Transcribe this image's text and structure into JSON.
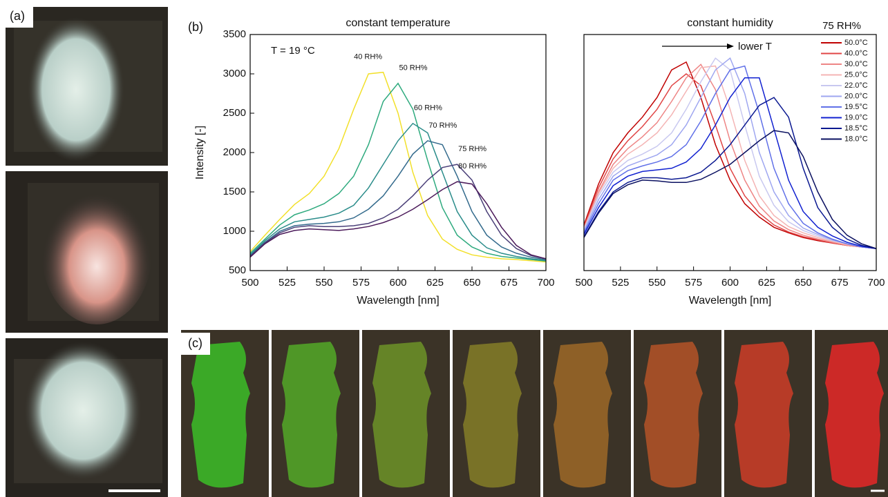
{
  "panel_labels": [
    "(a)",
    "(b)",
    "(c)"
  ],
  "chart_data": [
    {
      "type": "line",
      "title": "constant temperature",
      "annotation": "T = 19 °C",
      "xlabel": "Wavelength [nm]",
      "ylabel": "Intensity [-]",
      "xlim": [
        500,
        700
      ],
      "xticks": [
        500,
        525,
        550,
        575,
        600,
        625,
        650,
        675,
        700
      ],
      "ylim": [
        500,
        3500
      ],
      "yticks": [
        500,
        1000,
        1500,
        2000,
        2500,
        3000,
        3500
      ],
      "x": [
        500,
        510,
        520,
        530,
        540,
        550,
        560,
        570,
        580,
        590,
        600,
        610,
        620,
        630,
        640,
        650,
        660,
        670,
        680,
        690,
        700
      ],
      "series": [
        {
          "name": "40 RH%",
          "color": "#f2e02a",
          "values": [
            740,
            950,
            1150,
            1340,
            1480,
            1700,
            2050,
            2550,
            3000,
            3020,
            2500,
            1750,
            1200,
            900,
            770,
            700,
            670,
            650,
            640,
            625,
            610
          ]
        },
        {
          "name": "50 RH%",
          "color": "#2eaa7e",
          "values": [
            720,
            900,
            1080,
            1210,
            1270,
            1350,
            1480,
            1700,
            2100,
            2650,
            2880,
            2550,
            1900,
            1300,
            950,
            800,
            720,
            680,
            660,
            640,
            620
          ]
        },
        {
          "name": "60 RH%",
          "color": "#2a8c8a",
          "values": [
            700,
            880,
            1030,
            1120,
            1150,
            1180,
            1230,
            1330,
            1550,
            1850,
            2150,
            2370,
            2250,
            1750,
            1250,
            950,
            790,
            720,
            680,
            650,
            630
          ]
        },
        {
          "name": "70 RH%",
          "color": "#336a8c",
          "values": [
            690,
            860,
            1000,
            1070,
            1090,
            1100,
            1120,
            1170,
            1280,
            1450,
            1700,
            1980,
            2150,
            2100,
            1700,
            1250,
            950,
            800,
            720,
            670,
            640
          ]
        },
        {
          "name": "75 RH%",
          "color": "#4a3f78",
          "values": [
            680,
            850,
            980,
            1050,
            1070,
            1060,
            1060,
            1070,
            1100,
            1170,
            1280,
            1450,
            1650,
            1810,
            1850,
            1650,
            1250,
            950,
            780,
            690,
            650
          ]
        },
        {
          "name": "80 RH%",
          "color": "#4b1a5a",
          "values": [
            670,
            840,
            960,
            1010,
            1030,
            1020,
            1010,
            1030,
            1060,
            1110,
            1180,
            1280,
            1400,
            1530,
            1630,
            1600,
            1350,
            1050,
            820,
            700,
            650
          ]
        }
      ]
    },
    {
      "type": "line",
      "title": "constant humidity",
      "legend_title": "75 RH%",
      "annotation": "lower T",
      "xlabel": "Wavelength [nm]",
      "legend": "upper right",
      "xlim": [
        500,
        700
      ],
      "xticks": [
        500,
        525,
        550,
        575,
        600,
        625,
        650,
        675,
        700
      ],
      "ylim": [
        500,
        3500
      ],
      "x": [
        500,
        510,
        520,
        530,
        540,
        550,
        560,
        570,
        580,
        590,
        600,
        610,
        620,
        630,
        640,
        650,
        660,
        670,
        680,
        690,
        700
      ],
      "series": [
        {
          "name": "50.0°C",
          "color": "#c00000",
          "values": [
            1080,
            1600,
            2000,
            2250,
            2450,
            2700,
            3050,
            3150,
            2700,
            2100,
            1650,
            1350,
            1180,
            1050,
            980,
            920,
            880,
            850,
            820,
            800,
            780
          ]
        },
        {
          "name": "40.0°C",
          "color": "#e04545",
          "values": [
            1060,
            1550,
            1920,
            2150,
            2330,
            2550,
            2850,
            3000,
            2850,
            2350,
            1800,
            1450,
            1230,
            1080,
            990,
            930,
            890,
            850,
            820,
            800,
            780
          ]
        },
        {
          "name": "30.0°C",
          "color": "#ee8585",
          "values": [
            1040,
            1500,
            1850,
            2050,
            2200,
            2380,
            2650,
            2950,
            3120,
            2800,
            2150,
            1650,
            1320,
            1130,
            1020,
            950,
            900,
            860,
            820,
            800,
            780
          ]
        },
        {
          "name": "25.0°C",
          "color": "#f4b4b4",
          "values": [
            1030,
            1480,
            1800,
            1980,
            2100,
            2250,
            2480,
            2780,
            3080,
            3100,
            2550,
            1900,
            1450,
            1200,
            1060,
            980,
            920,
            870,
            830,
            800,
            780
          ]
        },
        {
          "name": "22.0°C",
          "color": "#c8c8f0",
          "values": [
            1020,
            1450,
            1750,
            1900,
            1980,
            2080,
            2250,
            2550,
            2900,
            3200,
            3050,
            2350,
            1700,
            1330,
            1120,
            1010,
            940,
            880,
            840,
            800,
            780
          ]
        },
        {
          "name": "20.0°C",
          "color": "#9ea6f0",
          "values": [
            1000,
            1400,
            1700,
            1830,
            1900,
            1970,
            2100,
            2350,
            2700,
            3050,
            3200,
            2750,
            2000,
            1500,
            1200,
            1040,
            960,
            890,
            840,
            800,
            780
          ]
        },
        {
          "name": "19.5°C",
          "color": "#6070e8",
          "values": [
            980,
            1350,
            1650,
            1770,
            1830,
            1880,
            1950,
            2100,
            2400,
            2750,
            3050,
            3100,
            2500,
            1800,
            1350,
            1100,
            980,
            900,
            840,
            800,
            780
          ]
        },
        {
          "name": "19.0°C",
          "color": "#1020d0",
          "values": [
            960,
            1300,
            1580,
            1700,
            1760,
            1780,
            1800,
            1880,
            2050,
            2350,
            2700,
            2950,
            2950,
            2300,
            1650,
            1250,
            1050,
            940,
            860,
            810,
            780
          ]
        },
        {
          "name": "18.5°C",
          "color": "#0a1890",
          "values": [
            930,
            1250,
            1500,
            1620,
            1680,
            1680,
            1660,
            1680,
            1750,
            1900,
            2100,
            2350,
            2600,
            2700,
            2450,
            1800,
            1300,
            1050,
            900,
            820,
            780
          ]
        },
        {
          "name": "18.0°C",
          "color": "#0a1060",
          "values": [
            920,
            1230,
            1480,
            1590,
            1650,
            1640,
            1620,
            1620,
            1660,
            1750,
            1850,
            2000,
            2150,
            2280,
            2250,
            1950,
            1500,
            1150,
            950,
            840,
            780
          ]
        }
      ]
    }
  ]
}
